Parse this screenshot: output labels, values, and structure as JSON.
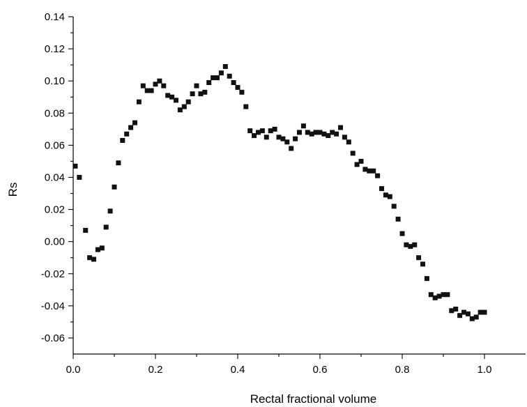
{
  "chart_data": {
    "type": "scatter",
    "title": "",
    "xlabel": "Rectal fractional volume",
    "ylabel": "Rs",
    "xlim": [
      0.0,
      1.1
    ],
    "ylim": [
      -0.07,
      0.14
    ],
    "xticks": [
      0.0,
      0.2,
      0.4,
      0.6,
      0.8,
      1.0
    ],
    "xtick_labels": [
      "0.0",
      "0.2",
      "0.4",
      "0.6",
      "0.8",
      "1.0"
    ],
    "yticks": [
      -0.06,
      -0.04,
      -0.02,
      0.0,
      0.02,
      0.04,
      0.06,
      0.08,
      0.1,
      0.12,
      0.14
    ],
    "ytick_labels": [
      "-0.06",
      "-0.04",
      "-0.02",
      "0.00",
      "0.02",
      "0.04",
      "0.06",
      "0.08",
      "0.10",
      "0.12",
      "0.14"
    ],
    "grid": false,
    "legend": "none",
    "marker_color": "#111111",
    "series": [
      {
        "x": [
          0.005,
          0.015,
          0.03,
          0.04,
          0.05,
          0.06,
          0.07,
          0.08,
          0.09,
          0.1,
          0.11,
          0.12,
          0.13,
          0.14,
          0.15,
          0.16,
          0.17,
          0.18,
          0.19,
          0.2,
          0.21,
          0.22,
          0.23,
          0.24,
          0.25,
          0.26,
          0.27,
          0.28,
          0.29,
          0.3,
          0.31,
          0.32,
          0.33,
          0.34,
          0.35,
          0.36,
          0.37,
          0.38,
          0.39,
          0.4,
          0.41,
          0.42,
          0.43,
          0.44,
          0.45,
          0.46,
          0.47,
          0.48,
          0.49,
          0.5,
          0.51,
          0.52,
          0.53,
          0.54,
          0.55,
          0.56,
          0.57,
          0.58,
          0.59,
          0.6,
          0.61,
          0.62,
          0.63,
          0.64,
          0.65,
          0.66,
          0.67,
          0.68,
          0.69,
          0.7,
          0.71,
          0.72,
          0.73,
          0.74,
          0.75,
          0.76,
          0.77,
          0.78,
          0.79,
          0.8,
          0.81,
          0.82,
          0.83,
          0.84,
          0.85,
          0.86,
          0.87,
          0.88,
          0.89,
          0.9,
          0.91,
          0.92,
          0.93,
          0.94,
          0.95,
          0.96,
          0.97,
          0.98,
          0.99,
          1.0
        ],
        "y": [
          0.047,
          0.04,
          0.007,
          -0.01,
          -0.011,
          -0.005,
          -0.004,
          0.009,
          0.019,
          0.034,
          0.049,
          0.063,
          0.067,
          0.071,
          0.074,
          0.087,
          0.097,
          0.094,
          0.094,
          0.098,
          0.1,
          0.097,
          0.091,
          0.09,
          0.088,
          0.082,
          0.084,
          0.087,
          0.092,
          0.097,
          0.092,
          0.093,
          0.099,
          0.102,
          0.102,
          0.105,
          0.109,
          0.103,
          0.099,
          0.096,
          0.093,
          0.084,
          0.069,
          0.066,
          0.068,
          0.069,
          0.065,
          0.069,
          0.07,
          0.065,
          0.064,
          0.062,
          0.058,
          0.064,
          0.068,
          0.072,
          0.068,
          0.067,
          0.068,
          0.068,
          0.067,
          0.066,
          0.068,
          0.067,
          0.071,
          0.065,
          0.062,
          0.055,
          0.048,
          0.05,
          0.045,
          0.044,
          0.044,
          0.041,
          0.033,
          0.029,
          0.028,
          0.022,
          0.014,
          0.005,
          -0.002,
          -0.003,
          -0.002,
          -0.01,
          -0.014,
          -0.023,
          -0.033,
          -0.035,
          -0.034,
          -0.033,
          -0.033,
          -0.043,
          -0.042,
          -0.046,
          -0.044,
          -0.045,
          -0.048,
          -0.047,
          -0.044,
          -0.044
        ]
      }
    ]
  }
}
